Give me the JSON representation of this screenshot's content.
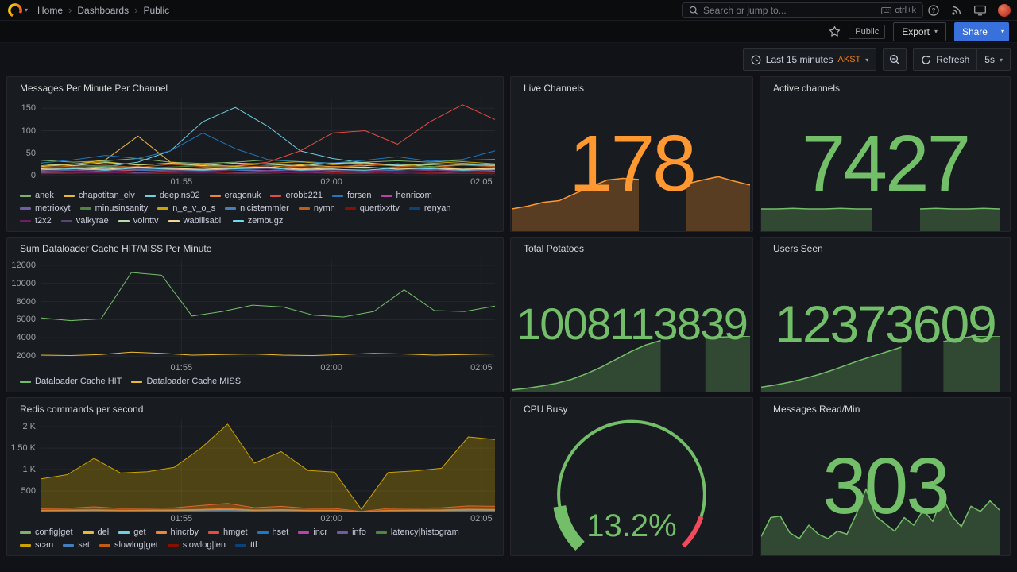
{
  "glyphs": {
    "caret_down": "▾"
  },
  "nav": {
    "breadcrumb": [
      "Home",
      "Dashboards",
      "Public"
    ],
    "separator": "›",
    "search": {
      "placeholder": "Search or jump to...",
      "shortcut": "ctrl+k"
    }
  },
  "header": {
    "public_tag": "Public",
    "export_label": "Export",
    "share_label": "Share"
  },
  "toolbar": {
    "time_range": "Last 15 minutes",
    "timezone": "AKST",
    "refresh_label": "Refresh",
    "interval": "5s"
  },
  "panels": {
    "messages": {
      "title": "Messages Per Minute Per Channel",
      "chart_data": {
        "type": "line",
        "ylim": [
          0,
          170
        ],
        "y_ticks": [
          {
            "label": "150",
            "v": 150
          },
          {
            "label": "100",
            "v": 100
          },
          {
            "label": "50",
            "v": 50
          },
          {
            "label": "0",
            "v": 0
          }
        ],
        "x_labels": [
          {
            "label": "01:55",
            "pos": 0.31
          },
          {
            "label": "02:00",
            "pos": 0.64
          },
          {
            "label": "02:05",
            "pos": 0.97
          }
        ],
        "series": [
          {
            "name": "anek",
            "color": "#7EB26D",
            "values": [
              34,
              30,
              33,
              38,
              30,
              27,
              30,
              35,
              31,
              28,
              30,
              33,
              30,
              34,
              36
            ]
          },
          {
            "name": "chapotitan_elv",
            "color": "#EAB839",
            "values": [
              20,
              25,
              35,
              88,
              30,
              22,
              20,
              18,
              24,
              20,
              22,
              26,
              20,
              24,
              22
            ]
          },
          {
            "name": "deepins02",
            "color": "#6ED0E0",
            "values": [
              12,
              15,
              20,
              30,
              55,
              120,
              152,
              110,
              55,
              38,
              28,
              24,
              26,
              25,
              22
            ]
          },
          {
            "name": "eragonuk",
            "color": "#EF843C",
            "values": [
              12,
              15,
              18,
              20,
              15,
              14,
              16,
              18,
              15,
              20,
              18,
              15,
              14,
              16,
              15
            ]
          },
          {
            "name": "erobb221",
            "color": "#E24D42",
            "values": [
              6,
              8,
              10,
              12,
              14,
              18,
              22,
              30,
              55,
              95,
              100,
              70,
              120,
              158,
              125
            ]
          },
          {
            "name": "forsen",
            "color": "#1F78C1",
            "values": [
              28,
              35,
              45,
              38,
              55,
              95,
              60,
              36,
              30,
              28,
              34,
              42,
              32,
              36,
              55
            ]
          },
          {
            "name": "henricom",
            "color": "#BA43A9",
            "values": [
              10,
              12,
              10,
              14,
              12,
              10,
              13,
              11,
              14,
              10,
              12,
              14,
              11,
              13,
              10
            ]
          },
          {
            "name": "metrioxyt",
            "color": "#705DA0",
            "values": [
              6,
              7,
              8,
              6,
              7,
              9,
              6,
              5,
              8,
              6,
              7,
              5,
              6,
              8,
              7
            ]
          },
          {
            "name": "minusinsanity",
            "color": "#508642",
            "values": [
              16,
              18,
              21,
              16,
              19,
              22,
              18,
              16,
              20,
              18,
              16,
              19,
              21,
              16,
              18
            ]
          },
          {
            "name": "n_e_v_o_s",
            "color": "#CCA300",
            "values": [
              22,
              26,
              31,
              23,
              28,
              24,
              21,
              27,
              31,
              24,
              28,
              22,
              27,
              31,
              26
            ]
          },
          {
            "name": "nicistemmler",
            "color": "#447EBC",
            "values": [
              10,
              12,
              15,
              12,
              10,
              14,
              12,
              10,
              13,
              14,
              10,
              12,
              15,
              12,
              10
            ]
          },
          {
            "name": "nymn",
            "color": "#C15C17",
            "values": [
              18,
              21,
              23,
              18,
              25,
              20,
              18,
              22,
              20,
              18,
              25,
              21,
              18,
              23,
              20
            ]
          },
          {
            "name": "quertixxttv",
            "color": "#890F02",
            "values": [
              5,
              6,
              5,
              8,
              6,
              5,
              7,
              8,
              5,
              6,
              8,
              5,
              6,
              5,
              7
            ]
          },
          {
            "name": "renyan",
            "color": "#0A437C",
            "values": [
              8,
              9,
              11,
              8,
              9,
              10,
              8,
              9,
              11,
              8,
              9,
              10,
              8,
              9,
              8
            ]
          },
          {
            "name": "t2x2",
            "color": "#6D1F62",
            "values": [
              4,
              5,
              7,
              4,
              5,
              6,
              4,
              5,
              7,
              4,
              5,
              6,
              4,
              5,
              4
            ]
          },
          {
            "name": "valkyrae",
            "color": "#584477",
            "values": [
              11,
              13,
              10,
              15,
              12,
              10,
              13,
              15,
              10,
              12,
              10,
              14,
              12,
              10,
              13
            ]
          },
          {
            "name": "vointtv",
            "color": "#B7DBAB",
            "values": [
              26,
              22,
              29,
              24,
              27,
              22,
              28,
              25,
              22,
              27,
              29,
              22,
              24,
              27,
              24
            ]
          },
          {
            "name": "wabilisabil",
            "color": "#F4D598",
            "values": [
              15,
              17,
              14,
              19,
              16,
              14,
              17,
              19,
              14,
              16,
              19,
              14,
              17,
              14,
              16
            ]
          },
          {
            "name": "zembugz",
            "color": "#70DBED",
            "values": [
              13,
              15,
              12,
              17,
              14,
              12,
              15,
              17,
              12,
              14,
              12,
              17,
              15,
              12,
              14
            ]
          }
        ]
      }
    },
    "dataloader": {
      "title": "Sum Dataloader Cache HIT/MISS Per Minute",
      "chart_data": {
        "type": "line",
        "ylim": [
          1400,
          12600
        ],
        "y_ticks": [
          {
            "label": "12000",
            "v": 12000
          },
          {
            "label": "10000",
            "v": 10000
          },
          {
            "label": "8000",
            "v": 8000
          },
          {
            "label": "6000",
            "v": 6000
          },
          {
            "label": "4000",
            "v": 4000
          },
          {
            "label": "2000",
            "v": 2000
          }
        ],
        "x_labels": [
          {
            "label": "01:55",
            "pos": 0.31
          },
          {
            "label": "02:00",
            "pos": 0.64
          },
          {
            "label": "02:05",
            "pos": 0.97
          }
        ],
        "series": [
          {
            "name": "Dataloader Cache HIT",
            "color": "#73BF69",
            "values": [
              6200,
              5900,
              6100,
              11200,
              10900,
              6400,
              6900,
              7600,
              7400,
              6500,
              6300,
              6900,
              9300,
              7000,
              6900,
              7500
            ]
          },
          {
            "name": "Dataloader Cache MISS",
            "color": "#EAB839",
            "values": [
              2100,
              2060,
              2160,
              2420,
              2300,
              2100,
              2160,
              2220,
              2100,
              2060,
              2160,
              2300,
              2220,
              2100,
              2160,
              2230
            ]
          }
        ]
      }
    },
    "redis": {
      "title": "Redis commands per second",
      "chart_data": {
        "type": "area",
        "fill_opacity": 0.3,
        "ylim": [
          0,
          2150
        ],
        "y_ticks": [
          {
            "label": "2 K",
            "v": 2000
          },
          {
            "label": "1.50 K",
            "v": 1500
          },
          {
            "label": "1 K",
            "v": 1000
          },
          {
            "label": "500",
            "v": 500
          }
        ],
        "x_labels": [
          {
            "label": "01:55",
            "pos": 0.31
          },
          {
            "label": "02:00",
            "pos": 0.64
          },
          {
            "label": "02:05",
            "pos": 0.97
          }
        ],
        "series": [
          {
            "name": "config|get",
            "color": "#7EB26D",
            "values": [
              30,
              32,
              34,
              30,
              32,
              33,
              38,
              45,
              32,
              36,
              30,
              30,
              8,
              30,
              32,
              33,
              40,
              38
            ]
          },
          {
            "name": "del",
            "color": "#EAB839",
            "values": [
              20,
              22,
              24,
              20,
              22,
              23,
              26,
              30,
              22,
              25,
              20,
              20,
              6,
              20,
              22,
              23,
              27,
              26
            ]
          },
          {
            "name": "get",
            "color": "#6ED0E0",
            "values": [
              40,
              44,
              48,
              42,
              44,
              46,
              55,
              70,
              45,
              52,
              42,
              40,
              12,
              40,
              44,
              46,
              58,
              55
            ]
          },
          {
            "name": "hincrby",
            "color": "#EF843C",
            "values": [
              50,
              55,
              60,
              52,
              55,
              58,
              70,
              90,
              55,
              65,
              52,
              50,
              15,
              50,
              55,
              58,
              75,
              70
            ]
          },
          {
            "name": "hmget",
            "color": "#E24D42",
            "values": [
              85,
              95,
              130,
              90,
              95,
              105,
              160,
              210,
              110,
              140,
              95,
              90,
              25,
              90,
              100,
              105,
              150,
              140
            ]
          },
          {
            "name": "hset",
            "color": "#1F78C1",
            "values": [
              15,
              16,
              18,
              15,
              16,
              17,
              20,
              24,
              16,
              19,
              15,
              15,
              5,
              15,
              16,
              17,
              21,
              20
            ]
          },
          {
            "name": "incr",
            "color": "#BA43A9",
            "values": [
              12,
              13,
              14,
              12,
              13,
              14,
              16,
              19,
              13,
              15,
              12,
              12,
              4,
              12,
              13,
              14,
              17,
              16
            ]
          },
          {
            "name": "info",
            "color": "#705DA0",
            "values": [
              8,
              9,
              10,
              8,
              9,
              9,
              11,
              13,
              9,
              10,
              8,
              8,
              3,
              8,
              9,
              9,
              11,
              11
            ]
          },
          {
            "name": "latency|histogram",
            "color": "#508642",
            "values": [
              6,
              7,
              7,
              6,
              7,
              7,
              8,
              10,
              7,
              8,
              6,
              6,
              2,
              6,
              7,
              7,
              9,
              8
            ]
          },
          {
            "name": "scan",
            "color": "#CCA300",
            "values": [
              780,
              880,
              1260,
              920,
              950,
              1050,
              1500,
              2060,
              1150,
              1420,
              980,
              940,
              70,
              930,
              970,
              1030,
              1760,
              1700
            ]
          },
          {
            "name": "set",
            "color": "#447EBC",
            "values": [
              25,
              27,
              30,
              26,
              27,
              28,
              33,
              40,
              27,
              31,
              25,
              25,
              7,
              25,
              27,
              28,
              35,
              33
            ]
          },
          {
            "name": "slowlog|get",
            "color": "#C15C17",
            "values": [
              10,
              11,
              12,
              10,
              11,
              11,
              13,
              16,
              11,
              12,
              10,
              10,
              3,
              10,
              11,
              11,
              14,
              13
            ]
          },
          {
            "name": "slowlog|len",
            "color": "#890F02",
            "values": [
              9,
              10,
              11,
              9,
              10,
              10,
              12,
              14,
              10,
              11,
              9,
              9,
              3,
              9,
              10,
              10,
              12,
              12
            ]
          },
          {
            "name": "ttl",
            "color": "#0A437C",
            "values": [
              7,
              8,
              9,
              7,
              8,
              8,
              9,
              11,
              8,
              9,
              7,
              7,
              2,
              7,
              8,
              8,
              10,
              9
            ]
          }
        ]
      }
    },
    "live_channels": {
      "title": "Live Channels",
      "value": "178",
      "color": "#ff9830",
      "spark": [
        40,
        45,
        52,
        55,
        68,
        80,
        92,
        95,
        93,
        null,
        null,
        85,
        92,
        98,
        90,
        83
      ]
    },
    "active_channels": {
      "title": "Active channels",
      "value": "7427",
      "color": "#73bf69",
      "spark": [
        40,
        40,
        41,
        40,
        40,
        41,
        40,
        40,
        null,
        null,
        40,
        41,
        40,
        40,
        41,
        40
      ]
    },
    "total_potatoes": {
      "title": "Total Potatoes",
      "value": "1008113839",
      "color": "#73bf69",
      "spark": [
        3,
        6,
        10,
        15,
        22,
        32,
        44,
        58,
        72,
        84,
        92,
        null,
        null,
        96,
        98,
        99,
        100
      ]
    },
    "users_seen": {
      "title": "Users Seen",
      "value": "12373609",
      "color": "#73bf69",
      "spark": [
        8,
        12,
        17,
        23,
        30,
        38,
        47,
        56,
        64,
        72,
        80,
        null,
        null,
        90,
        95,
        99,
        100,
        100
      ]
    },
    "cpu_busy": {
      "title": "CPU Busy",
      "value": "13.2%",
      "gauge": {
        "min": 0,
        "max": 100,
        "value": 13.2,
        "threshold_red_from": 90,
        "color": "#73bf69",
        "red": "#f2495c"
      }
    },
    "messages_read": {
      "title": "Messages Read/Min",
      "value": "303",
      "color": "#73bf69",
      "spark": [
        25,
        50,
        52,
        30,
        22,
        40,
        28,
        22,
        32,
        28,
        55,
        88,
        52,
        42,
        32,
        50,
        40,
        60,
        45,
        78,
        52,
        38,
        65,
        58,
        72,
        60
      ]
    }
  }
}
